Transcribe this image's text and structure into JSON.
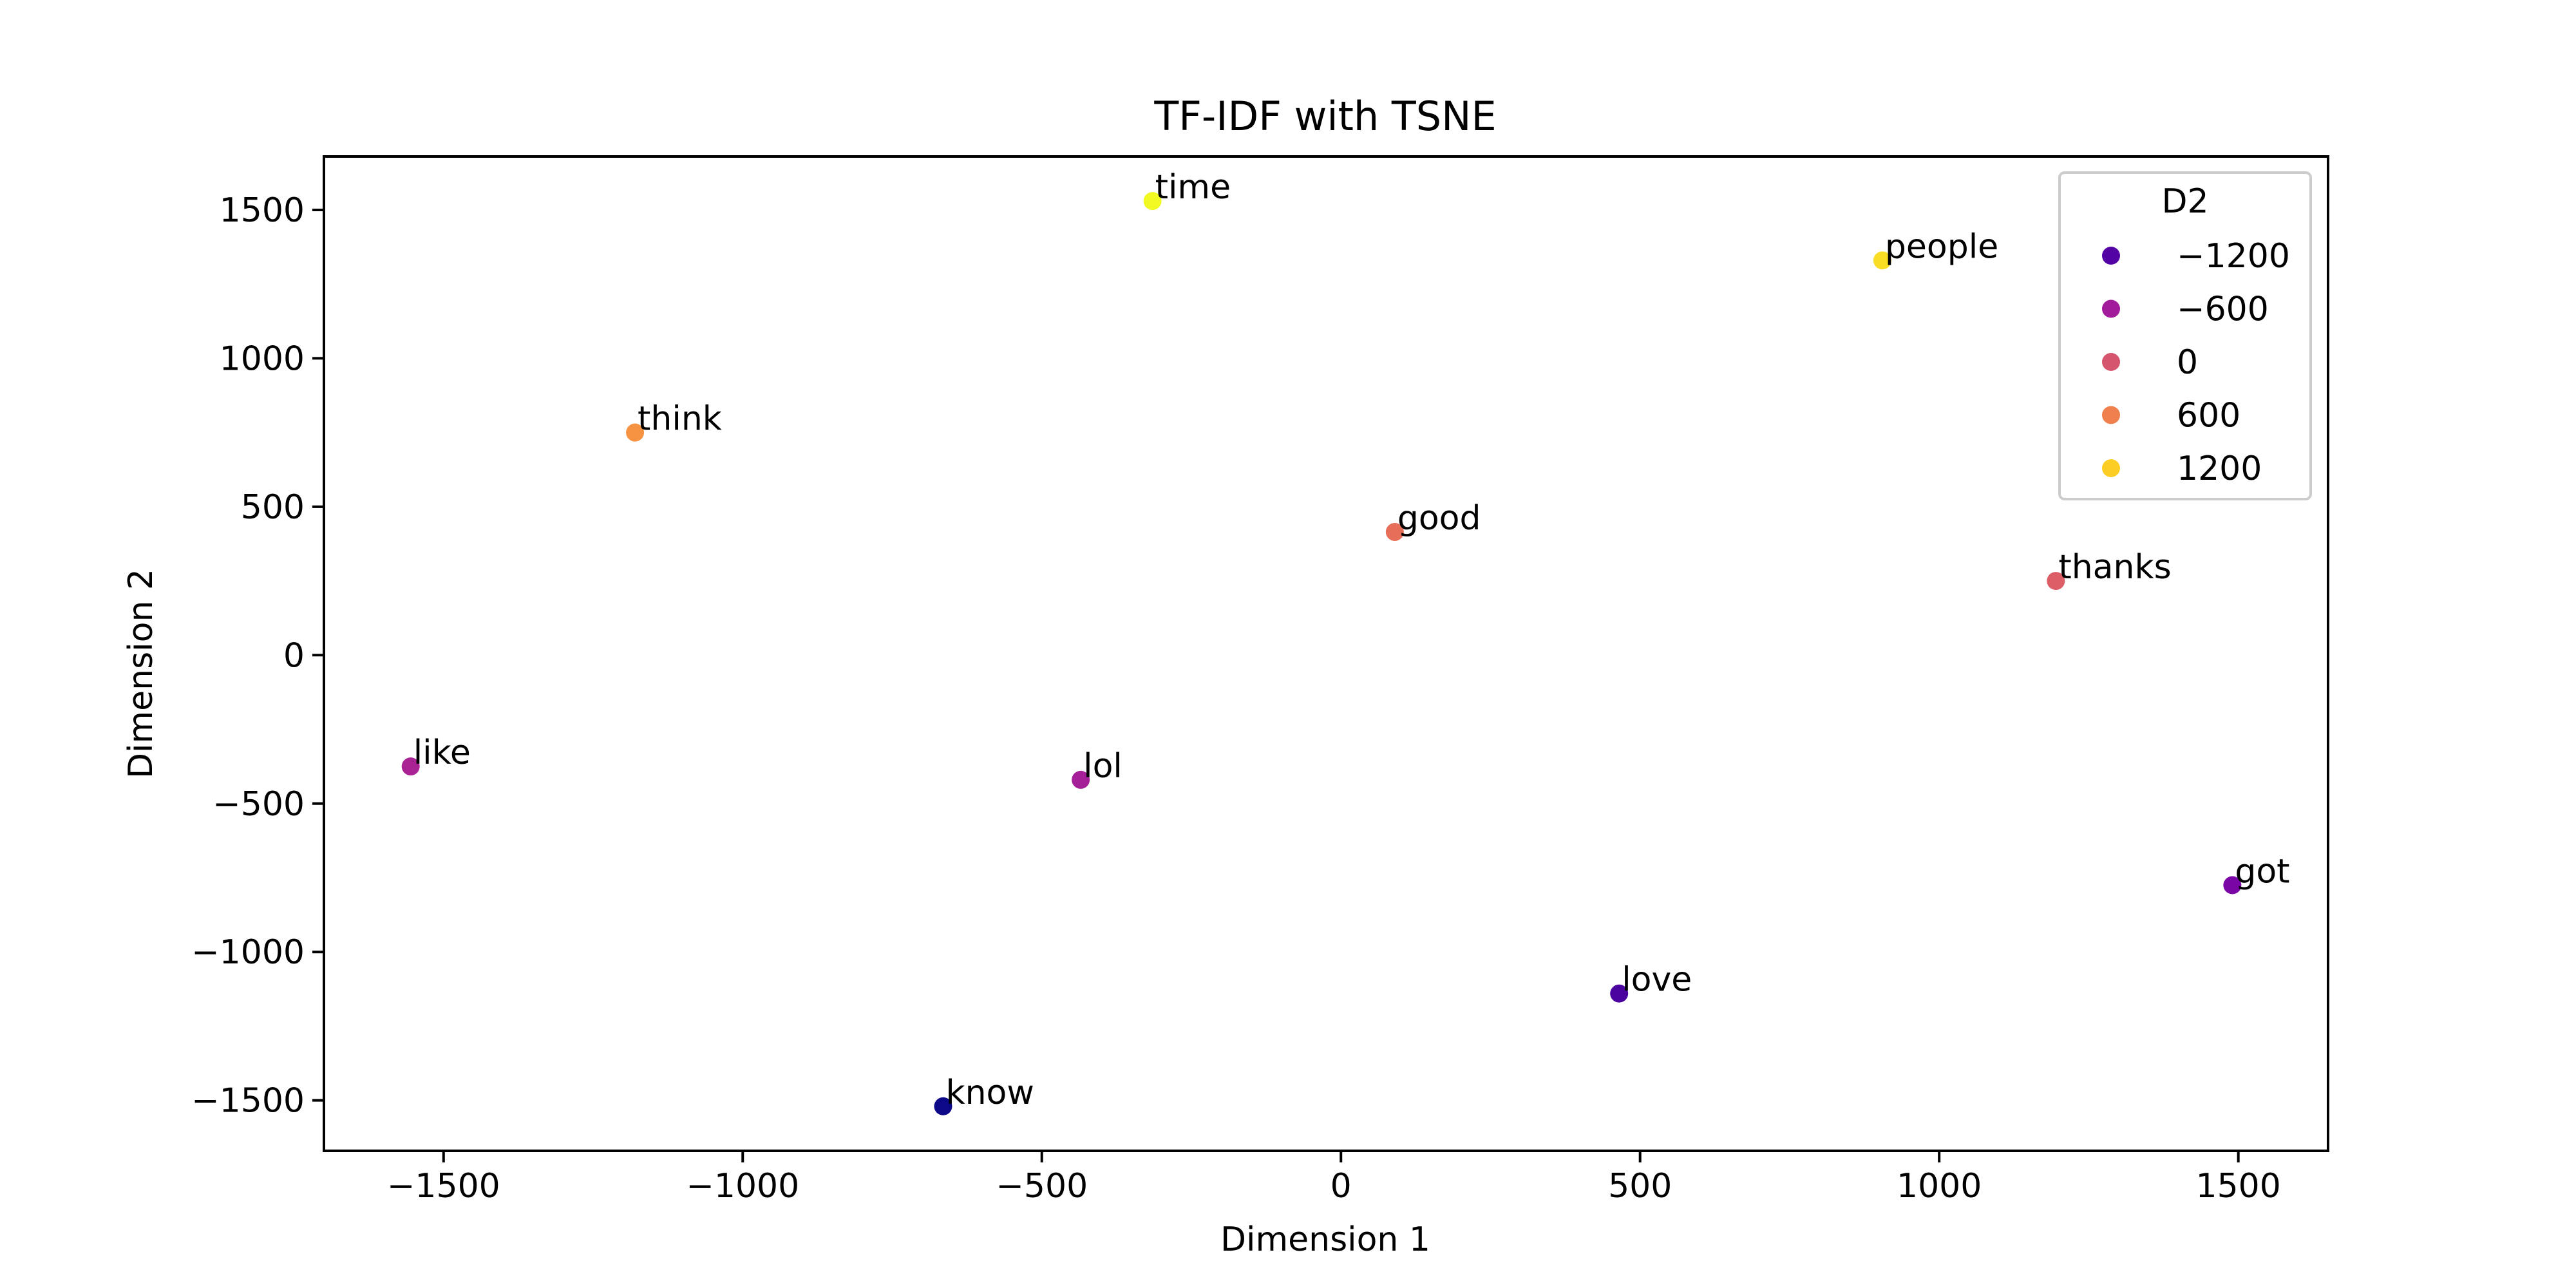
{
  "chart_data": {
    "type": "scatter",
    "title": "TF-IDF with TSNE",
    "xlabel": "Dimension 1",
    "ylabel": "Dimension 2",
    "xlim": [
      -1700,
      1650
    ],
    "ylim": [
      -1670,
      1680
    ],
    "xticks": [
      -1500,
      -1000,
      -500,
      0,
      500,
      1000,
      1500
    ],
    "yticks": [
      -1500,
      -1000,
      -500,
      0,
      500,
      1000,
      1500
    ],
    "xtick_labels": [
      "−1500",
      "−1000",
      "−500",
      "0",
      "500",
      "1000",
      "1500"
    ],
    "ytick_labels": [
      "−1500",
      "−1000",
      "−500",
      "0",
      "500",
      "1000",
      "1500"
    ],
    "colormap": "plasma",
    "grid": false,
    "points": [
      {
        "label": "time",
        "x": -315,
        "y": 1530,
        "hue": 1530
      },
      {
        "label": "people",
        "x": 905,
        "y": 1330,
        "hue": 1330
      },
      {
        "label": "think",
        "x": -1180,
        "y": 750,
        "hue": 750
      },
      {
        "label": "good",
        "x": 90,
        "y": 415,
        "hue": 415
      },
      {
        "label": "thanks",
        "x": 1195,
        "y": 250,
        "hue": 250
      },
      {
        "label": "like",
        "x": -1555,
        "y": -375,
        "hue": -375
      },
      {
        "label": "lol",
        "x": -435,
        "y": -420,
        "hue": -420
      },
      {
        "label": "got",
        "x": 1490,
        "y": -775,
        "hue": -775
      },
      {
        "label": "love",
        "x": 465,
        "y": -1140,
        "hue": -1140
      },
      {
        "label": "know",
        "x": -665,
        "y": -1520,
        "hue": -1520
      }
    ],
    "legend": {
      "title": "D2",
      "placement": "top-right",
      "entries": [
        {
          "label": "−1200",
          "color": "#5302a3"
        },
        {
          "label": "−600",
          "color": "#a11b9b"
        },
        {
          "label": "0",
          "color": "#d5546e"
        },
        {
          "label": "600",
          "color": "#f0804e"
        },
        {
          "label": "1200",
          "color": "#fcce25"
        }
      ]
    }
  }
}
